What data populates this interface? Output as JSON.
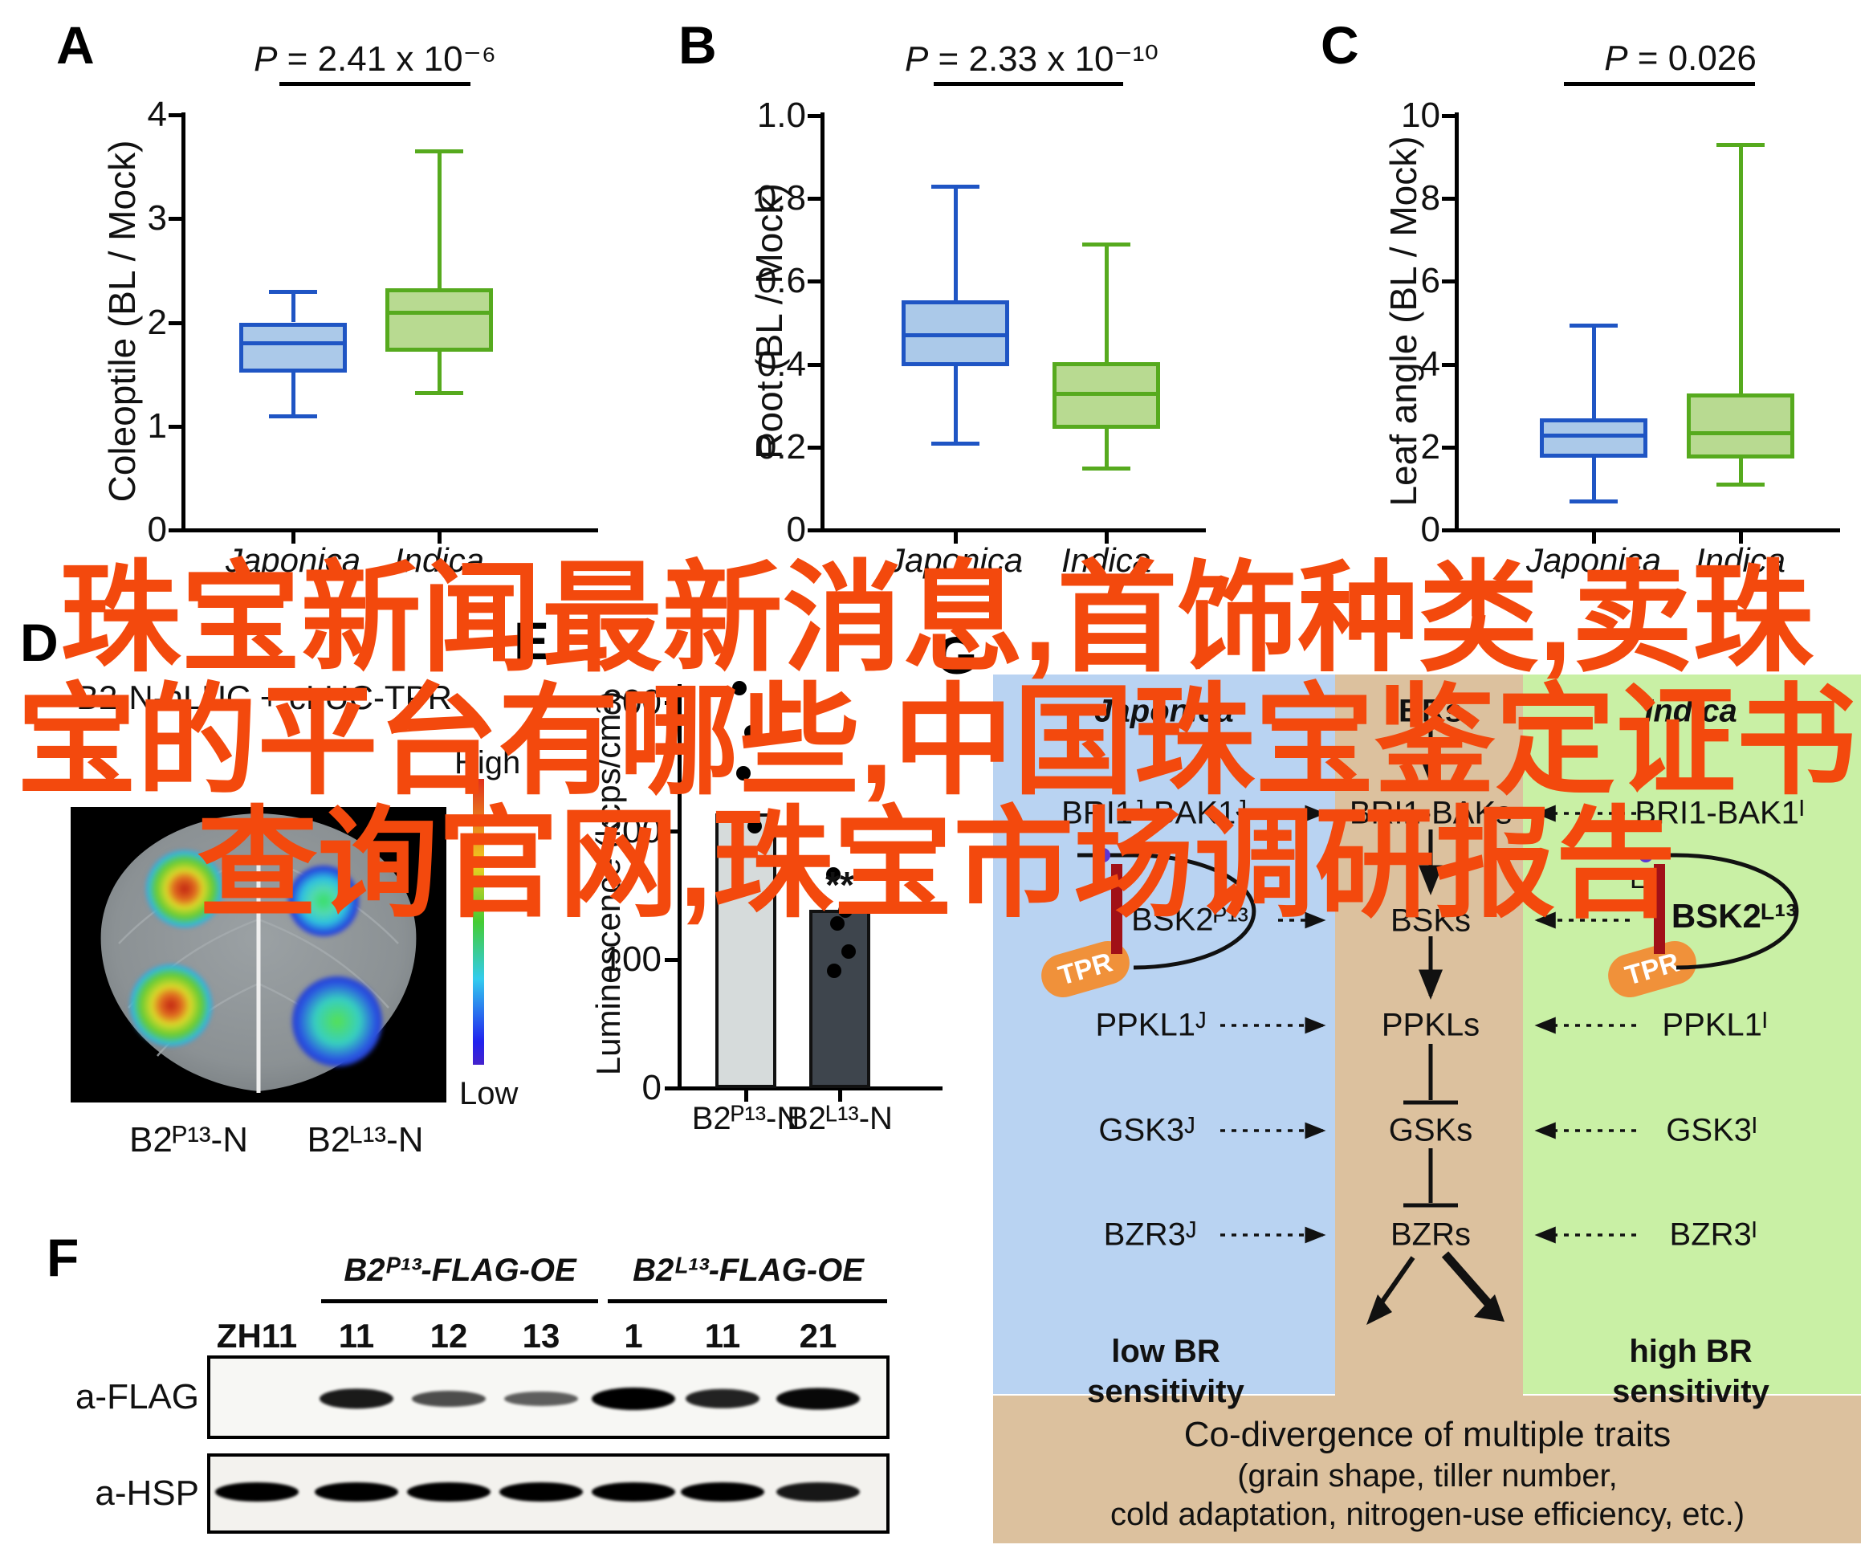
{
  "overlay": {
    "color": "#f3490d",
    "lines": [
      "珠宝新闻最新消息,首饰种类,卖珠",
      "宝的平台有哪些,中国珠宝鉴定证书",
      "查询官网,珠宝市场调研报告"
    ]
  },
  "panels": {
    "a": "A",
    "b": "B",
    "c": "C",
    "d": "D",
    "e": "E",
    "f": "F",
    "g": "G"
  },
  "chart_data": [
    {
      "id": "A",
      "type": "box",
      "stat_p": "P",
      "stat_value": " = 2.41 x 10⁻⁶",
      "ylabel": "Coleoptile (BL / Mock)",
      "ylim": [
        0,
        4
      ],
      "yticks": [
        0,
        1,
        2,
        3,
        4
      ],
      "ytick_labels": [
        "0",
        "1",
        "2",
        "3",
        "4"
      ],
      "categories": [
        "Japonica",
        "Indica"
      ],
      "series": [
        {
          "name": "Japonica",
          "whislo": 1.1,
          "q1": 1.52,
          "med": 1.8,
          "q3": 2.0,
          "whishi": 2.3
        },
        {
          "name": "Indica",
          "whislo": 1.32,
          "q1": 1.72,
          "med": 2.1,
          "q3": 2.33,
          "whishi": 3.65
        }
      ]
    },
    {
      "id": "B",
      "type": "box",
      "stat_p": "P",
      "stat_value": " = 2.33 x 10⁻¹⁰",
      "ylabel": "Root (BL / Mock)",
      "ylim": [
        0,
        1
      ],
      "yticks": [
        0,
        0.2,
        0.4,
        0.6,
        0.8,
        1.0
      ],
      "ytick_labels": [
        "0",
        "0.2",
        "0.4",
        "0.6",
        "0.8",
        "1.0"
      ],
      "categories": [
        "Japonica",
        "Indica"
      ],
      "series": [
        {
          "name": "Japonica",
          "whislo": 0.21,
          "q1": 0.395,
          "med": 0.47,
          "q3": 0.555,
          "whishi": 0.83
        },
        {
          "name": "Indica",
          "whislo": 0.15,
          "q1": 0.245,
          "med": 0.33,
          "q3": 0.405,
          "whishi": 0.69
        }
      ]
    },
    {
      "id": "C",
      "type": "box",
      "stat_p": "P",
      "stat_value": " = 0.026",
      "ylabel": "Leaf angle (BL / Mock)",
      "ylim": [
        0,
        10
      ],
      "yticks": [
        0,
        2,
        4,
        6,
        8,
        10
      ],
      "ytick_labels": [
        "0",
        "2",
        "4",
        "6",
        "8",
        "10"
      ],
      "categories": [
        "Japonica",
        "Indica"
      ],
      "series": [
        {
          "name": "Japonica",
          "whislo": 0.7,
          "q1": 1.75,
          "med": 2.28,
          "q3": 2.7,
          "whishi": 4.95
        },
        {
          "name": "Indica",
          "whislo": 1.1,
          "q1": 1.72,
          "med": 2.35,
          "q3": 3.3,
          "whishi": 9.3
        }
      ]
    },
    {
      "id": "E",
      "type": "bar",
      "ylabel": "Luminescence (kcps/cm²)",
      "ylim": [
        0,
        300
      ],
      "yticks": [
        0,
        100,
        200,
        300
      ],
      "ytick_labels": [
        "0",
        "100",
        "200",
        "300"
      ],
      "categories": [
        "B2ᴾ¹³-N",
        "B2ᴸ¹³-N"
      ],
      "values": [
        214,
        139
      ],
      "dots": [
        [
          311,
          277,
          245,
          204,
          184
        ],
        [
          166,
          138,
          128,
          106,
          91
        ]
      ],
      "significance": "**",
      "bar_colors": [
        "#d6dbdb",
        "#3e454d"
      ]
    }
  ],
  "panel_d": {
    "header": "B2-N-nLUC + cLUC-TPR",
    "labels": [
      "B2ᴾ¹³-N",
      "B2ᴸ¹³-N"
    ],
    "scale_high": "High",
    "scale_low": "Low"
  },
  "panel_f": {
    "groups": [
      {
        "label": "B2ᴾ¹³-FLAG-OE"
      },
      {
        "label": "B2ᴸ¹³-FLAG-OE"
      }
    ],
    "lanes": [
      "ZH11",
      "11",
      "12",
      "13",
      "1",
      "11",
      "21"
    ],
    "rows": [
      "a-FLAG",
      "a-HSP"
    ],
    "flag_intensity": [
      0,
      0.85,
      0.55,
      0.45,
      1,
      0.8,
      0.95
    ],
    "hsp_intensity": [
      1,
      1,
      1,
      1,
      1,
      1,
      0.9
    ]
  },
  "pathway": {
    "col_headers": [
      "Japonica",
      "BRs",
      "Indica"
    ],
    "colors": {
      "japonica": "#b9d3f2",
      "middle": "#dcc19e",
      "indica": "#c9f0a5"
    },
    "left": [
      "BRI1ᴶ-BAK1ᴶ",
      "BSK2ᴾ¹³",
      "PPKL1ᴶ",
      "GSK3ᴶ",
      "BZR3ᴶ"
    ],
    "middle": [
      "BRI1-BAKs",
      "BSKs",
      "PPKLs",
      "GSKs",
      "BZRs"
    ],
    "right": [
      "BRI1-BAK1ᴵ",
      "BSK2ᴸ¹³",
      "PPKL1ᴵ",
      "GSK3ᴵ",
      "BZR3ᴵ"
    ],
    "tpr": "TPR",
    "leu_mark": "L",
    "low_sensitivity": "low BR sensitivity",
    "high_sensitivity": "high BR sensitivity",
    "footer_lines": [
      "Co-divergence of multiple traits",
      "(grain shape, tiller number,",
      "cold adaptation, nitrogen-use efficiency, etc.)"
    ],
    "accent_red": "#a11117",
    "accent_purple": "#5b36d6",
    "accent_orange": "#f0913a"
  }
}
